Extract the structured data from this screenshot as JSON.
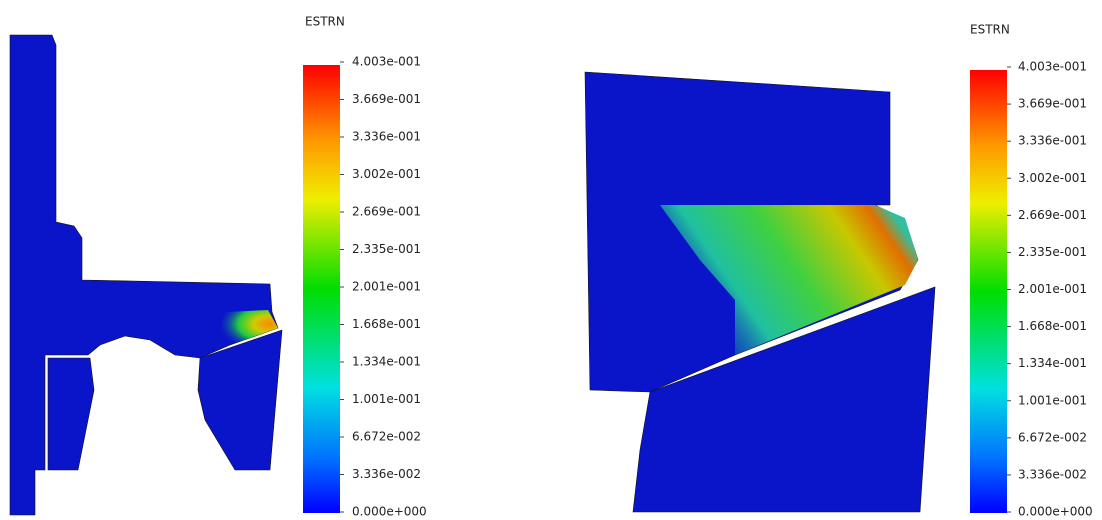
{
  "panels": [
    {
      "legend": {
        "title": "ESTRN",
        "labels": [
          "4.003e-001",
          "3.669e-001",
          "3.336e-001",
          "3.002e-001",
          "2.669e-001",
          "2.335e-001",
          "2.001e-001",
          "1.668e-001",
          "1.334e-001",
          "1.001e-001",
          "6.672e-002",
          "3.336e-002",
          "0.000e+000"
        ]
      }
    },
    {
      "legend": {
        "title": "ESTRN",
        "labels": [
          "4.003e-001",
          "3.669e-001",
          "3.336e-001",
          "3.002e-001",
          "2.669e-001",
          "2.335e-001",
          "2.001e-001",
          "1.668e-001",
          "1.334e-001",
          "1.001e-001",
          "6.672e-002",
          "3.336e-002",
          "0.000e+000"
        ]
      }
    }
  ]
}
